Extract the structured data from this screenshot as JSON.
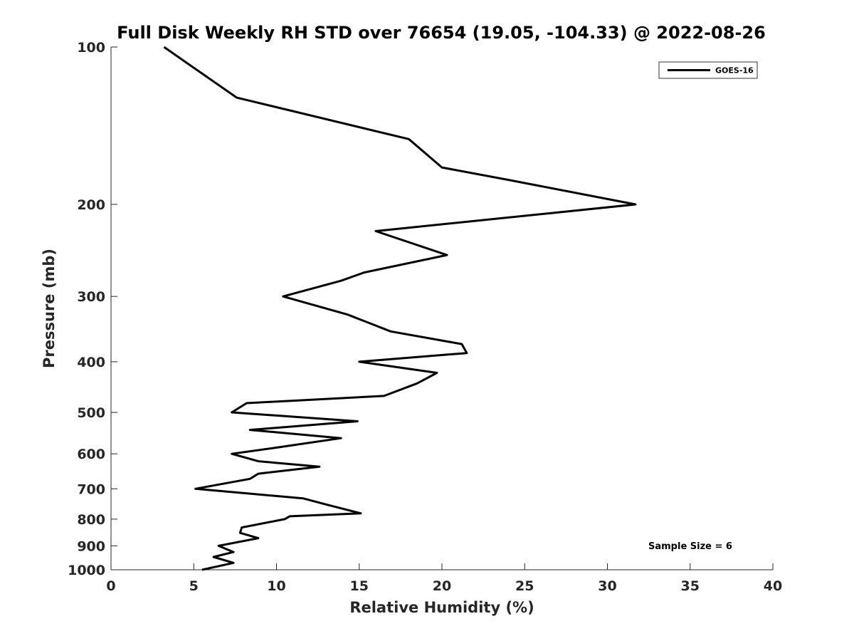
{
  "chart_data": {
    "type": "line",
    "title": "Full Disk Weekly RH STD over 76654 (19.05, -104.33) @ 2022-08-26",
    "xlabel": "Relative Humidity (%)",
    "ylabel": "Pressure (mb)",
    "xlim": [
      0,
      40
    ],
    "ylim": [
      100,
      1000
    ],
    "yscale": "log",
    "y_reversed": true,
    "x_ticks": [
      "0",
      "5",
      "10",
      "15",
      "20",
      "25",
      "30",
      "35",
      "40"
    ],
    "y_ticks": [
      "100",
      "200",
      "300",
      "400",
      "500",
      "600",
      "700",
      "800",
      "900",
      "1000"
    ],
    "legend": {
      "location": "top-right",
      "entries": [
        "GOES-16"
      ]
    },
    "annotation": "Sample Size = 6",
    "line_color": "#000000",
    "series": [
      {
        "name": "GOES-16",
        "points": [
          [
            3.2,
            100
          ],
          [
            7.6,
            125
          ],
          [
            18.0,
            150
          ],
          [
            20.0,
            170
          ],
          [
            24.2,
            180
          ],
          [
            31.7,
            200
          ],
          [
            16.0,
            225
          ],
          [
            20.3,
            250
          ],
          [
            15.3,
            270
          ],
          [
            13.9,
            280
          ],
          [
            10.4,
            300
          ],
          [
            14.3,
            325
          ],
          [
            16.9,
            350
          ],
          [
            21.2,
            370
          ],
          [
            21.5,
            385
          ],
          [
            15.0,
            400
          ],
          [
            19.7,
            420
          ],
          [
            18.5,
            440
          ],
          [
            16.5,
            465
          ],
          [
            8.2,
            480
          ],
          [
            7.3,
            500
          ],
          [
            14.9,
            520
          ],
          [
            8.4,
            540
          ],
          [
            13.9,
            560
          ],
          [
            9.8,
            585
          ],
          [
            7.3,
            600
          ],
          [
            8.9,
            620
          ],
          [
            12.6,
            635
          ],
          [
            8.9,
            655
          ],
          [
            8.4,
            670
          ],
          [
            5.1,
            700
          ],
          [
            11.6,
            730
          ],
          [
            13.0,
            750
          ],
          [
            15.1,
            780
          ],
          [
            10.8,
            790
          ],
          [
            10.5,
            800
          ],
          [
            7.9,
            830
          ],
          [
            7.8,
            850
          ],
          [
            8.9,
            870
          ],
          [
            6.5,
            900
          ],
          [
            7.4,
            925
          ],
          [
            6.2,
            945
          ],
          [
            7.4,
            970
          ],
          [
            5.5,
            1000
          ]
        ]
      }
    ]
  }
}
